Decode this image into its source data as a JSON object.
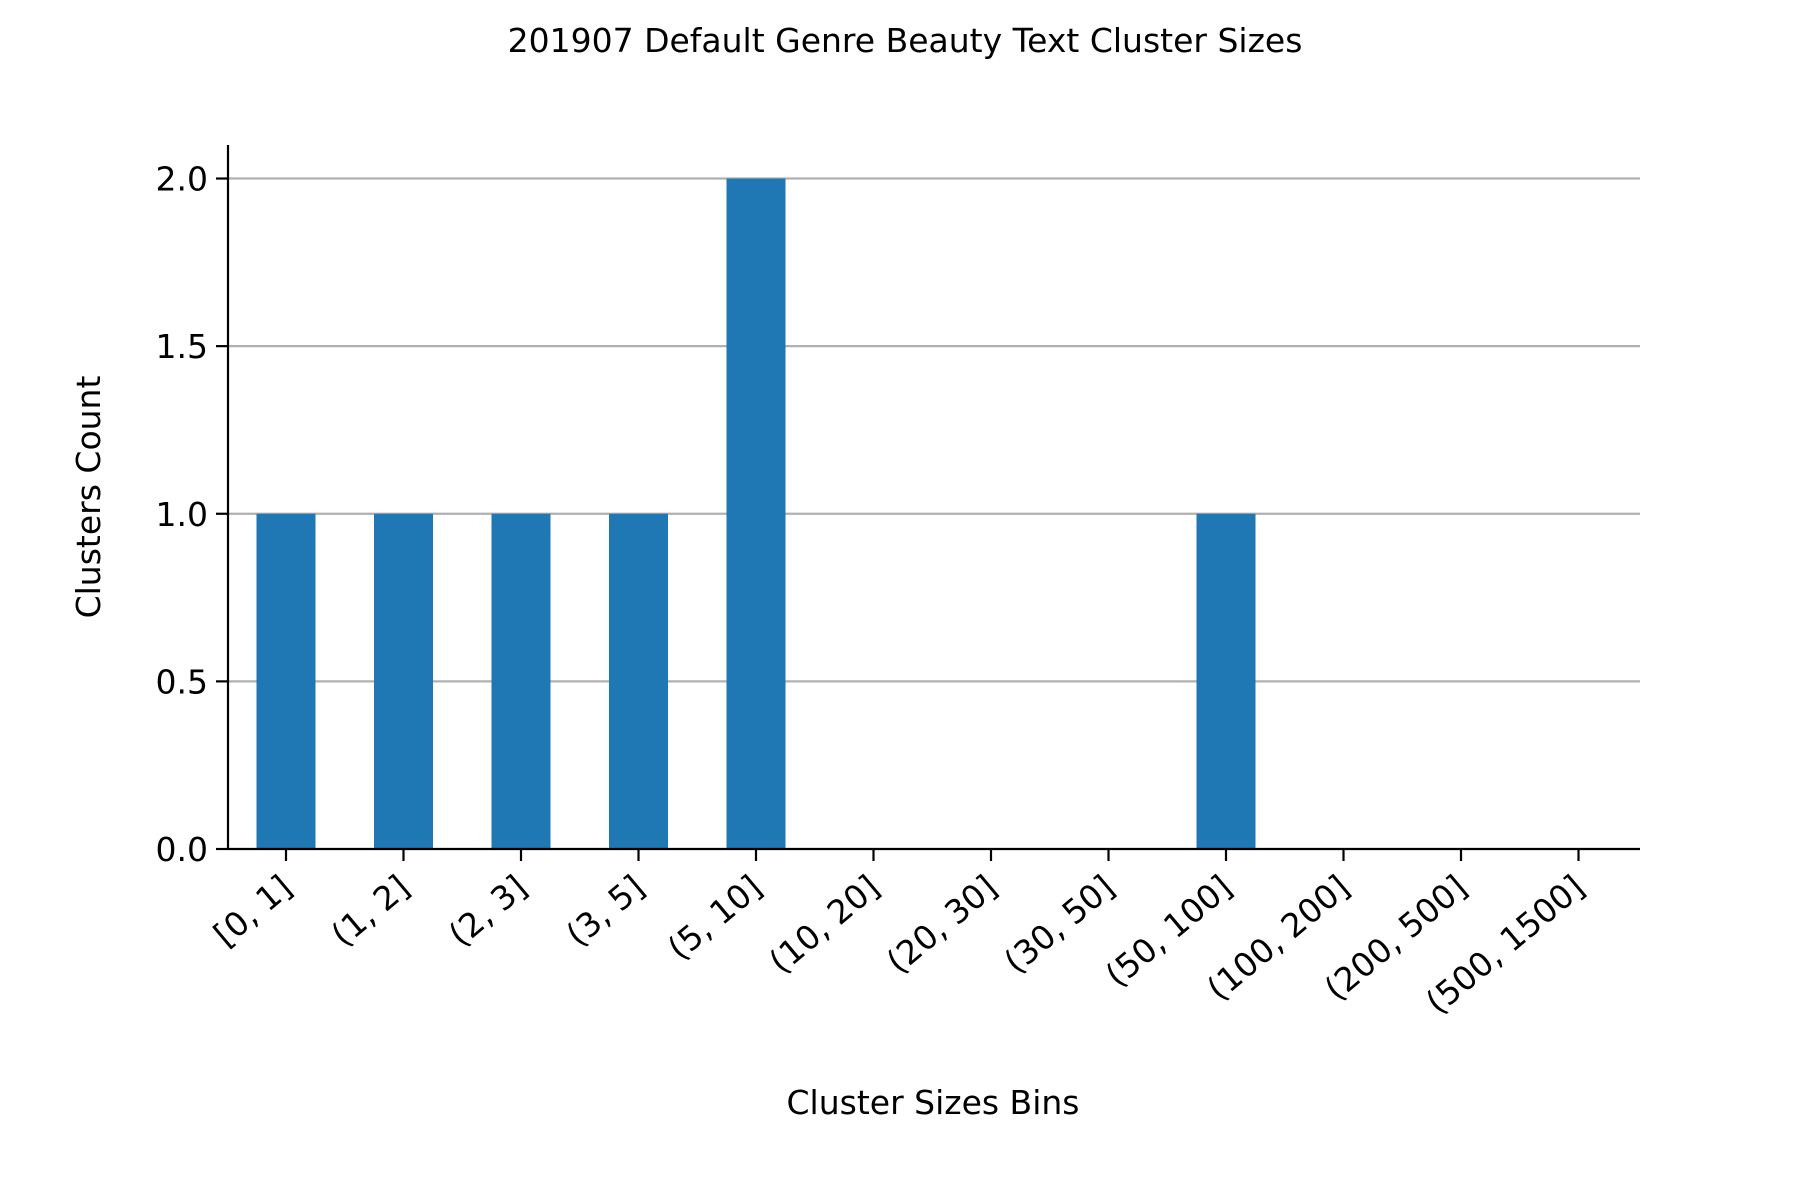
{
  "chart_data": {
    "type": "bar",
    "title": "201907 Default Genre Beauty Text Cluster Sizes",
    "xlabel": "Cluster Sizes Bins",
    "ylabel": "Clusters Count",
    "categories": [
      "[0, 1]",
      "(1, 2]",
      "(2, 3]",
      "(3, 5]",
      "(5, 10]",
      "(10, 20]",
      "(20, 30]",
      "(30, 50]",
      "(50, 100]",
      "(100, 200]",
      "(200, 500]",
      "(500, 1500]"
    ],
    "values": [
      1,
      1,
      1,
      1,
      2,
      0,
      0,
      0,
      1,
      0,
      0,
      0
    ],
    "ylim": [
      0,
      2.1
    ],
    "yticks": [
      "0.0",
      "0.5",
      "1.0",
      "1.5",
      "2.0"
    ],
    "grid": "y",
    "legend": "none",
    "colors": {
      "bar": "#1f77b4",
      "grid": "#b0b0b0",
      "axis": "#000000"
    }
  }
}
